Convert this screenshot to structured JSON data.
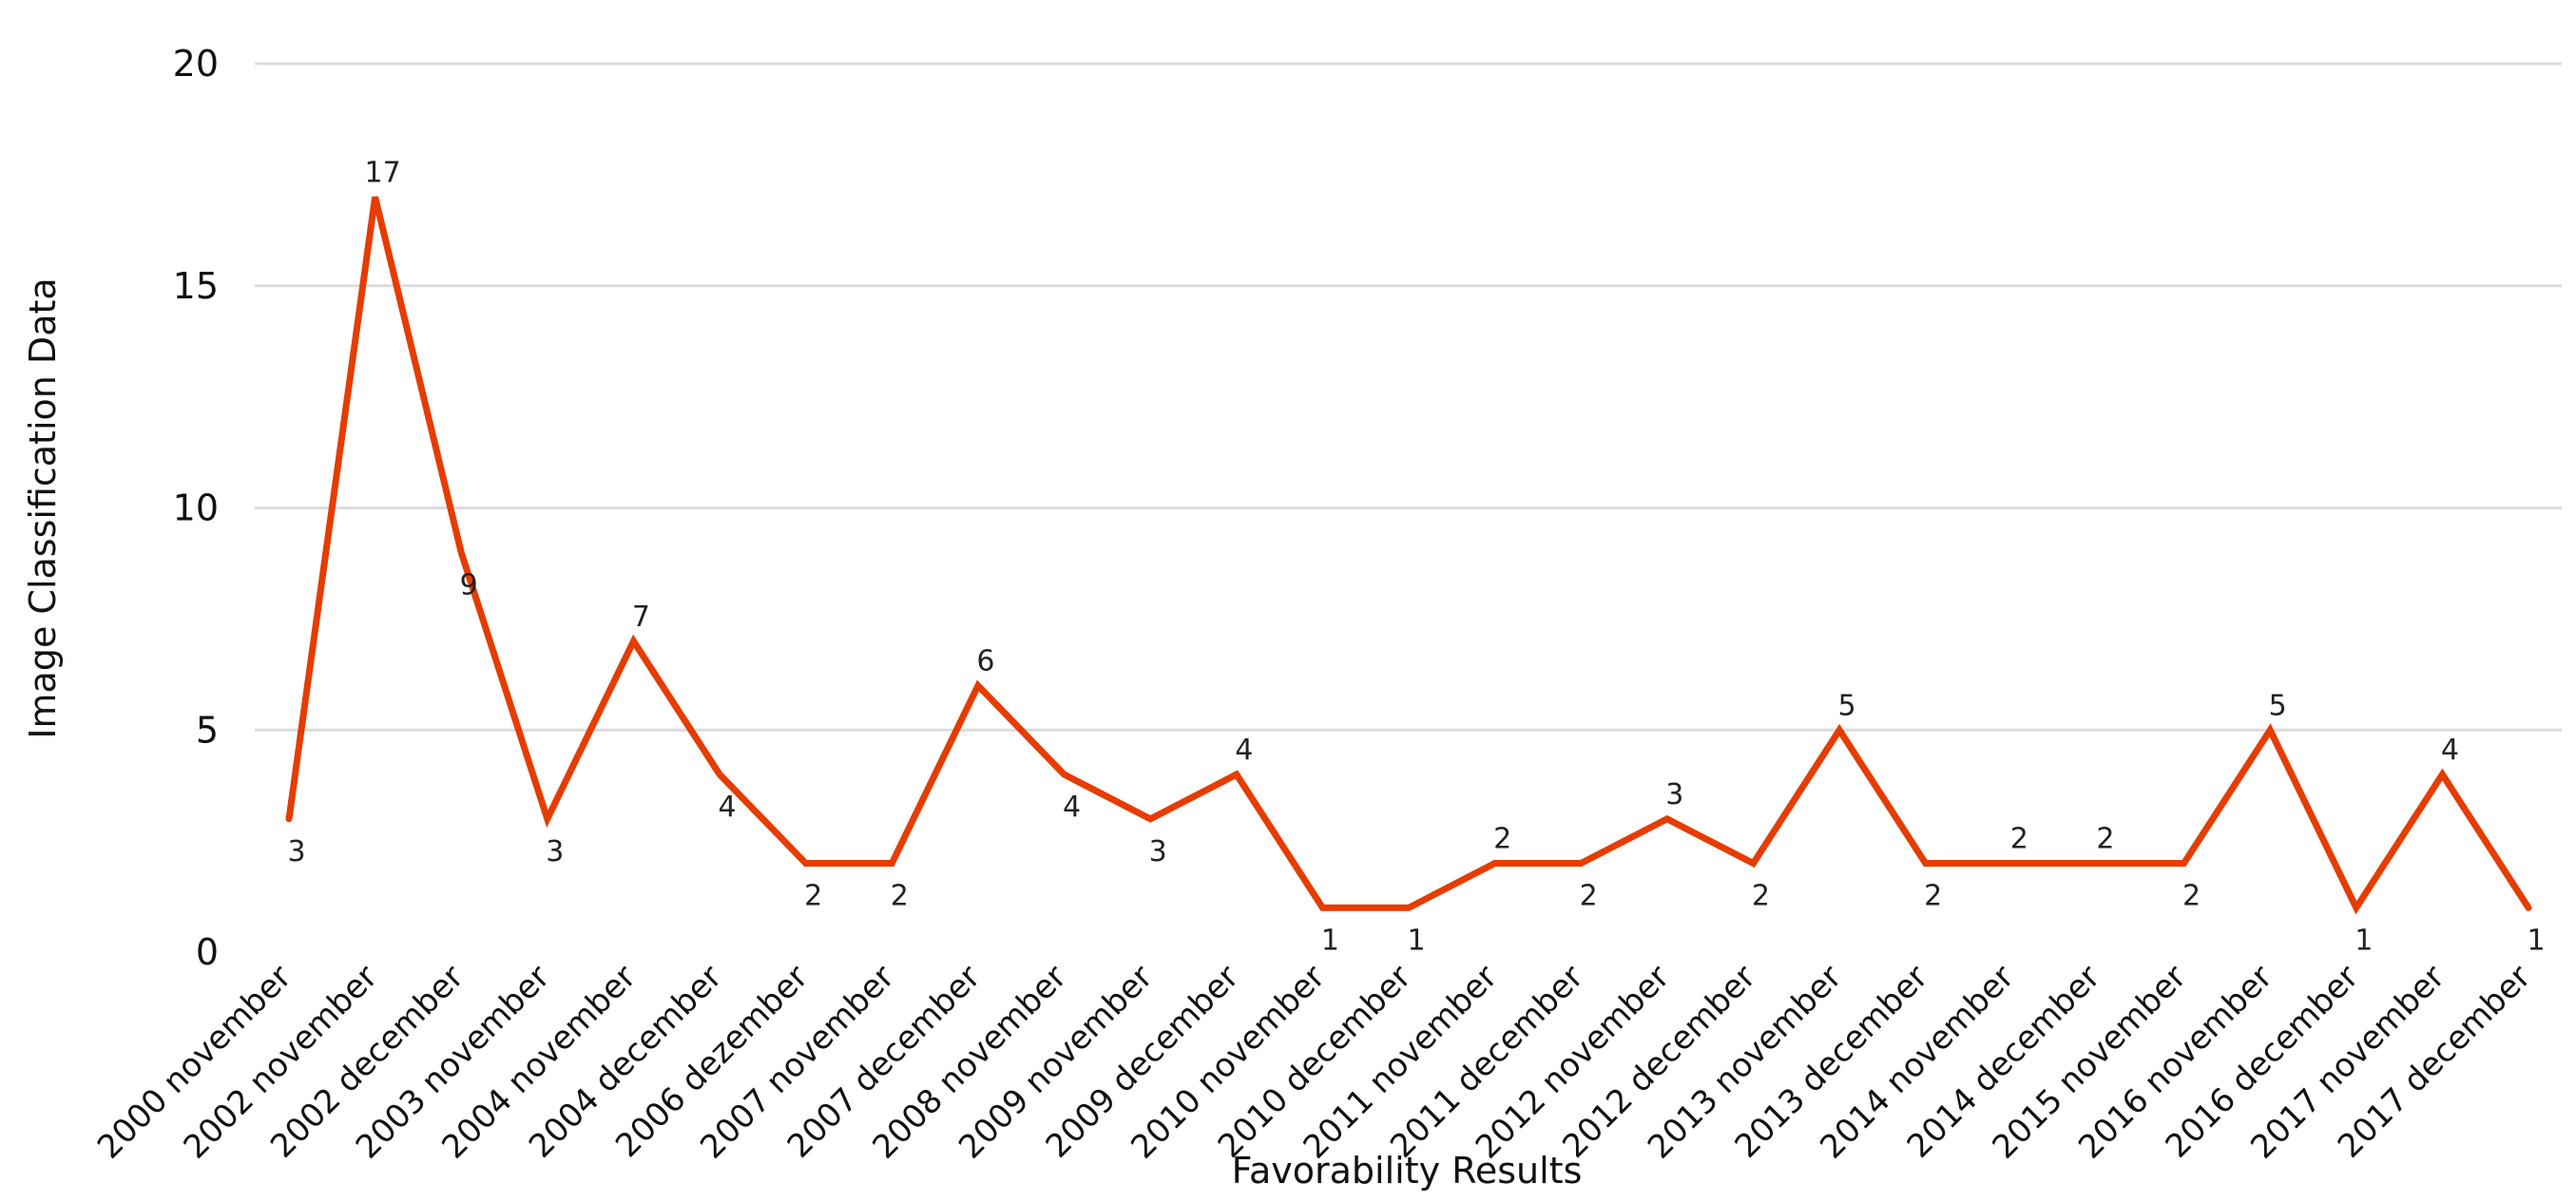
{
  "chart_data": {
    "type": "line",
    "xlabel": "Favorability Results",
    "ylabel": "Image Classification Data",
    "ylim": [
      0,
      20
    ],
    "yticks": [
      0,
      5,
      10,
      15,
      20
    ],
    "grid": true,
    "line_color": "#e63c00",
    "categories": [
      "2000 november",
      "2002 november",
      "2002 december",
      "2003 november",
      "2004 november",
      "2004 december",
      "2006 dezember",
      "2007 november",
      "2007 december",
      "2008 november",
      "2009 november",
      "2009 december",
      "2010 november",
      "2010 december",
      "2011 november",
      "2011 december",
      "2012 november",
      "2012 december",
      "2013 november",
      "2013 december",
      "2014 november",
      "2014 december",
      "2015 november",
      "2016 november",
      "2016 december",
      "2017 november",
      "2017 december"
    ],
    "values": [
      3,
      17,
      9,
      3,
      7,
      4,
      2,
      2,
      6,
      4,
      3,
      4,
      1,
      1,
      2,
      2,
      3,
      2,
      5,
      2,
      2,
      2,
      2,
      5,
      1,
      4,
      1
    ]
  }
}
